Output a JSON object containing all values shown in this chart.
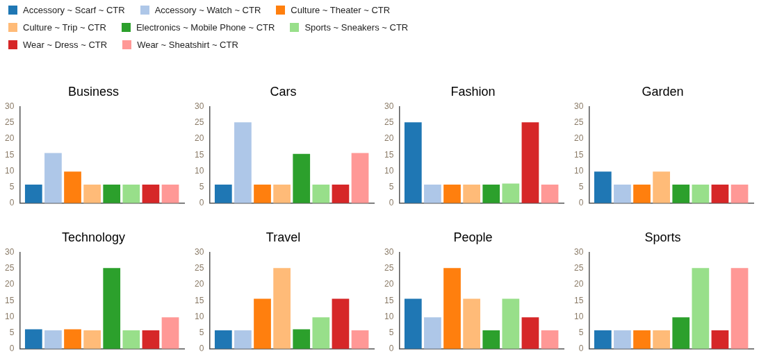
{
  "chart_data": [
    {
      "type": "bar",
      "title": "Business",
      "categories": [
        null
      ],
      "ylim": [
        0,
        30
      ],
      "yticks": [
        0,
        5,
        10,
        15,
        20,
        25,
        30
      ],
      "grid": false,
      "tick_labels": "y",
      "legend": "top",
      "series": [
        {
          "name": "Accessory ~ Scarf ~ CTR",
          "color": "#1f77b4",
          "values": [
            5.8
          ]
        },
        {
          "name": "Accessory ~ Watch ~ CTR",
          "color": "#aec7e8",
          "values": [
            15.6
          ]
        },
        {
          "name": "Culture ~ Theater ~ CTR",
          "color": "#ff7f0e",
          "values": [
            9.8
          ]
        },
        {
          "name": "Culture ~ Trip ~ CTR",
          "color": "#ffbb78",
          "values": [
            5.8
          ]
        },
        {
          "name": "Electronics ~ Mobile Phone ~ CTR",
          "color": "#2ca02c",
          "values": [
            5.8
          ]
        },
        {
          "name": "Sports ~ Sneakers ~ CTR",
          "color": "#98df8a",
          "values": [
            5.8
          ]
        },
        {
          "name": "Wear ~ Dress ~ CTR",
          "color": "#d62728",
          "values": [
            5.8
          ]
        },
        {
          "name": "Wear ~ Sheatshirt ~ CTR",
          "color": "#ff9896",
          "values": [
            5.8
          ]
        }
      ]
    },
    {
      "type": "bar",
      "title": "Cars",
      "categories": [
        null
      ],
      "ylim": [
        0,
        30
      ],
      "yticks": [
        0,
        5,
        10,
        15,
        20,
        25,
        30
      ],
      "grid": false,
      "tick_labels": "y",
      "series": [
        {
          "color": "#1f77b4",
          "values": [
            5.8
          ]
        },
        {
          "color": "#aec7e8",
          "values": [
            25.1
          ]
        },
        {
          "color": "#ff7f0e",
          "values": [
            5.8
          ]
        },
        {
          "color": "#ffbb78",
          "values": [
            5.8
          ]
        },
        {
          "color": "#2ca02c",
          "values": [
            15.3
          ]
        },
        {
          "color": "#98df8a",
          "values": [
            5.8
          ]
        },
        {
          "color": "#d62728",
          "values": [
            5.8
          ]
        },
        {
          "color": "#ff9896",
          "values": [
            15.6
          ]
        }
      ]
    },
    {
      "type": "bar",
      "title": "Fashion",
      "categories": [
        null
      ],
      "ylim": [
        0,
        30
      ],
      "yticks": [
        0,
        5,
        10,
        15,
        20,
        25,
        30
      ],
      "grid": false,
      "tick_labels": "y",
      "series": [
        {
          "color": "#1f77b4",
          "values": [
            25.1
          ]
        },
        {
          "color": "#aec7e8",
          "values": [
            5.8
          ]
        },
        {
          "color": "#ff7f0e",
          "values": [
            5.8
          ]
        },
        {
          "color": "#ffbb78",
          "values": [
            5.8
          ]
        },
        {
          "color": "#2ca02c",
          "values": [
            5.8
          ]
        },
        {
          "color": "#98df8a",
          "values": [
            6.1
          ]
        },
        {
          "color": "#d62728",
          "values": [
            25.1
          ]
        },
        {
          "color": "#ff9896",
          "values": [
            5.8
          ]
        }
      ]
    },
    {
      "type": "bar",
      "title": "Garden",
      "categories": [
        null
      ],
      "ylim": [
        0,
        30
      ],
      "yticks": [
        0,
        5,
        10,
        15,
        20,
        25,
        30
      ],
      "grid": false,
      "tick_labels": "y",
      "series": [
        {
          "color": "#1f77b4",
          "values": [
            9.8
          ]
        },
        {
          "color": "#aec7e8",
          "values": [
            5.8
          ]
        },
        {
          "color": "#ff7f0e",
          "values": [
            5.8
          ]
        },
        {
          "color": "#ffbb78",
          "values": [
            9.8
          ]
        },
        {
          "color": "#2ca02c",
          "values": [
            5.8
          ]
        },
        {
          "color": "#98df8a",
          "values": [
            5.8
          ]
        },
        {
          "color": "#d62728",
          "values": [
            5.8
          ]
        },
        {
          "color": "#ff9896",
          "values": [
            5.8
          ]
        }
      ]
    },
    {
      "type": "bar",
      "title": "Technology",
      "categories": [
        null
      ],
      "ylim": [
        0,
        30
      ],
      "yticks": [
        0,
        5,
        10,
        15,
        20,
        25,
        30
      ],
      "grid": false,
      "tick_labels": "y",
      "series": [
        {
          "color": "#1f77b4",
          "values": [
            6.1
          ]
        },
        {
          "color": "#aec7e8",
          "values": [
            5.8
          ]
        },
        {
          "color": "#ff7f0e",
          "values": [
            6.1
          ]
        },
        {
          "color": "#ffbb78",
          "values": [
            5.8
          ]
        },
        {
          "color": "#2ca02c",
          "values": [
            25.1
          ]
        },
        {
          "color": "#98df8a",
          "values": [
            5.8
          ]
        },
        {
          "color": "#d62728",
          "values": [
            5.8
          ]
        },
        {
          "color": "#ff9896",
          "values": [
            9.8
          ]
        }
      ]
    },
    {
      "type": "bar",
      "title": "Travel",
      "categories": [
        null
      ],
      "ylim": [
        0,
        30
      ],
      "yticks": [
        0,
        5,
        10,
        15,
        20,
        25,
        30
      ],
      "grid": false,
      "tick_labels": "y",
      "series": [
        {
          "color": "#1f77b4",
          "values": [
            5.8
          ]
        },
        {
          "color": "#aec7e8",
          "values": [
            5.8
          ]
        },
        {
          "color": "#ff7f0e",
          "values": [
            15.6
          ]
        },
        {
          "color": "#ffbb78",
          "values": [
            25.1
          ]
        },
        {
          "color": "#2ca02c",
          "values": [
            6.1
          ]
        },
        {
          "color": "#98df8a",
          "values": [
            9.8
          ]
        },
        {
          "color": "#d62728",
          "values": [
            15.6
          ]
        },
        {
          "color": "#ff9896",
          "values": [
            5.8
          ]
        }
      ]
    },
    {
      "type": "bar",
      "title": "People",
      "categories": [
        null
      ],
      "ylim": [
        0,
        30
      ],
      "yticks": [
        0,
        5,
        10,
        15,
        20,
        25,
        30
      ],
      "grid": false,
      "tick_labels": "y",
      "series": [
        {
          "color": "#1f77b4",
          "values": [
            15.6
          ]
        },
        {
          "color": "#aec7e8",
          "values": [
            9.8
          ]
        },
        {
          "color": "#ff7f0e",
          "values": [
            25.1
          ]
        },
        {
          "color": "#ffbb78",
          "values": [
            15.6
          ]
        },
        {
          "color": "#2ca02c",
          "values": [
            5.8
          ]
        },
        {
          "color": "#98df8a",
          "values": [
            15.6
          ]
        },
        {
          "color": "#d62728",
          "values": [
            9.8
          ]
        },
        {
          "color": "#ff9896",
          "values": [
            5.8
          ]
        }
      ]
    },
    {
      "type": "bar",
      "title": "Sports",
      "categories": [
        null
      ],
      "ylim": [
        0,
        30
      ],
      "yticks": [
        0,
        5,
        10,
        15,
        20,
        25,
        30
      ],
      "grid": false,
      "tick_labels": "y",
      "series": [
        {
          "color": "#1f77b4",
          "values": [
            5.8
          ]
        },
        {
          "color": "#aec7e8",
          "values": [
            5.8
          ]
        },
        {
          "color": "#ff7f0e",
          "values": [
            5.8
          ]
        },
        {
          "color": "#ffbb78",
          "values": [
            5.8
          ]
        },
        {
          "color": "#2ca02c",
          "values": [
            9.8
          ]
        },
        {
          "color": "#98df8a",
          "values": [
            25.1
          ]
        },
        {
          "color": "#d62728",
          "values": [
            5.8
          ]
        },
        {
          "color": "#ff9896",
          "values": [
            25.1
          ]
        }
      ]
    }
  ]
}
